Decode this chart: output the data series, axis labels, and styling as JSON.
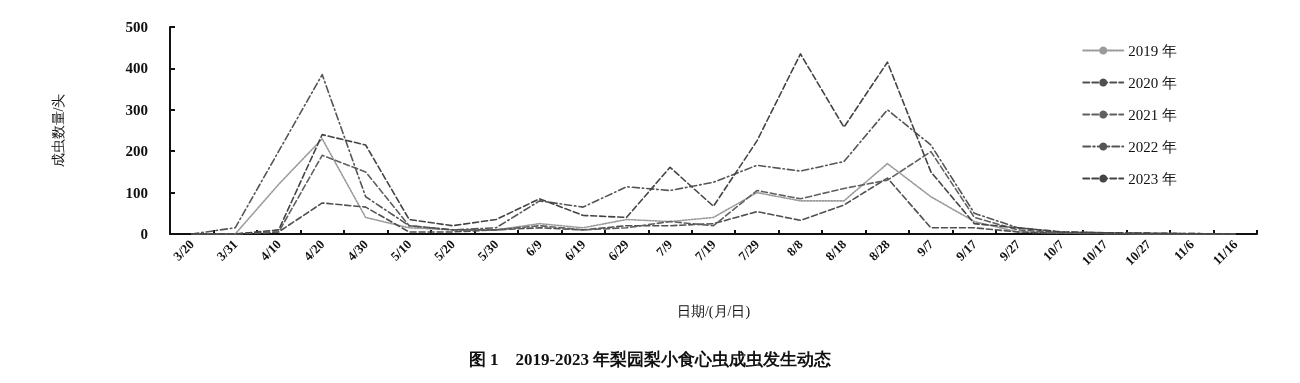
{
  "chart_data": {
    "type": "line",
    "title": "图 1　2019-2023 年梨园梨小食心虫成虫发生动态",
    "xlabel": "日期/(月/日)",
    "ylabel": "成虫数量/头",
    "categories": [
      "3/20",
      "3/31",
      "4/10",
      "4/20",
      "4/30",
      "5/10",
      "5/20",
      "5/30",
      "6/9",
      "6/19",
      "6/29",
      "7/9",
      "7/19",
      "7/29",
      "8/8",
      "8/18",
      "8/28",
      "9/7",
      "9/17",
      "9/27",
      "10/7",
      "10/17",
      "10/27",
      "11/6",
      "11/16"
    ],
    "series": [
      {
        "name": "2019 年",
        "color": "#9a9a9a",
        "line_style": "dotted",
        "values": [
          0,
          0,
          120,
          230,
          40,
          15,
          10,
          10,
          25,
          15,
          35,
          30,
          40,
          100,
          80,
          80,
          170,
          90,
          30,
          5,
          2,
          1,
          0,
          0,
          0
        ]
      },
      {
        "name": "2020 年",
        "color": "#505050",
        "line_style": "dashed",
        "values": [
          0,
          0,
          5,
          75,
          65,
          5,
          5,
          10,
          15,
          10,
          20,
          20,
          25,
          54,
          33,
          70,
          135,
          15,
          15,
          5,
          2,
          1,
          0,
          0,
          0
        ]
      },
      {
        "name": "2021 年",
        "color": "#606060",
        "line_style": "dashed",
        "values": [
          0,
          0,
          5,
          190,
          150,
          20,
          10,
          10,
          20,
          10,
          15,
          30,
          20,
          105,
          85,
          110,
          130,
          199,
          40,
          10,
          3,
          2,
          1,
          0,
          0
        ]
      },
      {
        "name": "2022 年",
        "color": "#555555",
        "line_style": "dashdot",
        "values": [
          0,
          15,
          200,
          385,
          90,
          20,
          10,
          15,
          80,
          65,
          114,
          105,
          125,
          166,
          152,
          175,
          300,
          215,
          50,
          15,
          5,
          3,
          2,
          1,
          0
        ]
      },
      {
        "name": "2023 年",
        "color": "#444444",
        "line_style": "dashed",
        "values": [
          0,
          0,
          10,
          240,
          215,
          35,
          20,
          35,
          85,
          45,
          40,
          161,
          67,
          225,
          435,
          258,
          415,
          150,
          25,
          15,
          5,
          3,
          2,
          1,
          0
        ]
      }
    ],
    "ylim": [
      0,
      500
    ],
    "yticks": [
      0,
      100,
      200,
      300,
      400,
      500
    ],
    "grid": false,
    "legend": "top right",
    "marker": "none"
  }
}
